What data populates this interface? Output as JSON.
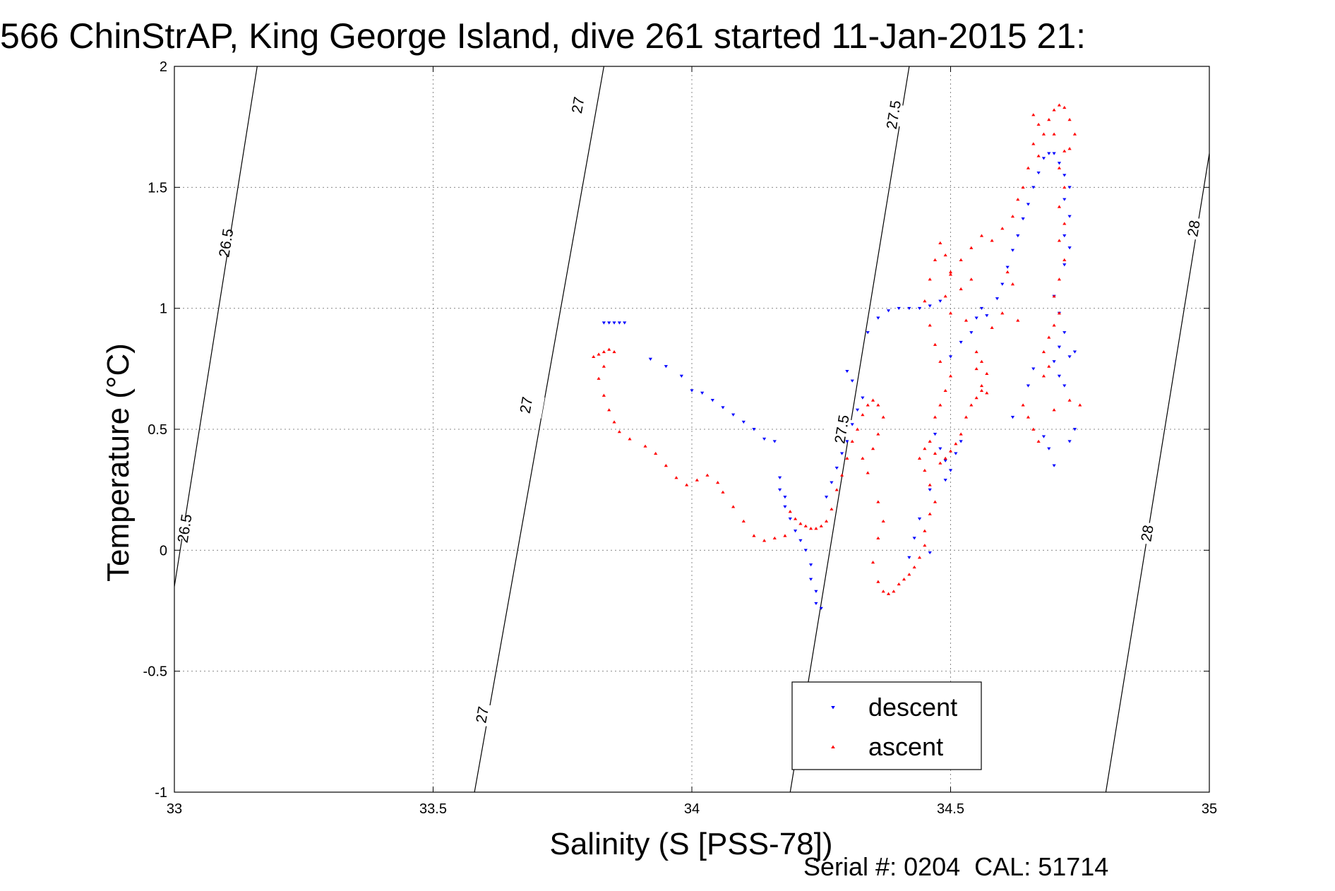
{
  "page": {
    "title": "566 ChinStrAP, King George Island, dive 261 started 11-Jan-2015 21:",
    "footer": "Serial #: 0204  CAL: 51714"
  },
  "chart_data": {
    "type": "scatter",
    "title": "566 ChinStrAP, King George Island, dive 261 started 11-Jan-2015 21:",
    "xlabel": "Salinity (S [PSS-78])",
    "ylabel": "Temperature (°C)",
    "xlim": [
      33,
      35
    ],
    "ylim": [
      -1,
      2
    ],
    "xticks": [
      33,
      33.5,
      34,
      34.5,
      35
    ],
    "xtick_labels": [
      "33",
      "33.5",
      "34",
      "34.5",
      "35"
    ],
    "yticks": [
      -1,
      -0.5,
      0,
      0.5,
      1,
      1.5,
      2
    ],
    "ytick_labels": [
      "-1",
      "-0.5",
      "0",
      "0.5",
      "1",
      "1.5",
      "2"
    ],
    "grid": true,
    "legend": {
      "placement": "bottom-center",
      "entries": [
        "descent",
        "ascent"
      ]
    },
    "colors": {
      "descent": "#0000ff",
      "ascent": "#ff0000"
    },
    "isopycnals": [
      {
        "level": "26.5",
        "path": [
          [
            33.0,
            -0.15
          ],
          [
            33.16,
            2.0
          ]
        ],
        "labels": [
          {
            "x": 33.02,
            "y": 0.09
          },
          {
            "x": 33.1,
            "y": 1.27
          }
        ]
      },
      {
        "level": "27",
        "path": [
          [
            33.58,
            -1.0
          ],
          [
            33.83,
            2.0
          ]
        ],
        "labels": [
          {
            "x": 33.595,
            "y": -0.68
          },
          {
            "x": 33.68,
            "y": 0.6
          },
          {
            "x": 33.78,
            "y": 1.84
          }
        ]
      },
      {
        "level": "27.5",
        "path": [
          [
            34.19,
            -1.0
          ],
          [
            34.42,
            2.0
          ]
        ],
        "labels": [
          {
            "x": 34.29,
            "y": 0.5
          },
          {
            "x": 34.39,
            "y": 1.8
          }
        ]
      },
      {
        "level": "28",
        "path": [
          [
            34.8,
            -1.0
          ],
          [
            35.0,
            1.64
          ]
        ],
        "labels": [
          {
            "x": 34.88,
            "y": 0.07
          },
          {
            "x": 34.97,
            "y": 1.33
          }
        ]
      }
    ],
    "series": [
      {
        "name": "descent",
        "marker": "triangle-down",
        "points": [
          [
            33.83,
            0.94
          ],
          [
            33.84,
            0.94
          ],
          [
            33.85,
            0.94
          ],
          [
            33.86,
            0.94
          ],
          [
            33.87,
            0.94
          ],
          [
            33.92,
            0.79
          ],
          [
            33.95,
            0.76
          ],
          [
            33.98,
            0.72
          ],
          [
            34.0,
            0.66
          ],
          [
            34.02,
            0.65
          ],
          [
            34.04,
            0.62
          ],
          [
            34.06,
            0.59
          ],
          [
            34.08,
            0.56
          ],
          [
            34.1,
            0.53
          ],
          [
            34.12,
            0.5
          ],
          [
            34.14,
            0.46
          ],
          [
            34.16,
            0.45
          ],
          [
            34.17,
            0.3
          ],
          [
            34.17,
            0.25
          ],
          [
            34.18,
            0.22
          ],
          [
            34.18,
            0.18
          ],
          [
            34.19,
            0.13
          ],
          [
            34.2,
            0.08
          ],
          [
            34.21,
            0.04
          ],
          [
            34.22,
            0.0
          ],
          [
            34.23,
            -0.06
          ],
          [
            34.23,
            -0.12
          ],
          [
            34.24,
            -0.17
          ],
          [
            34.24,
            -0.22
          ],
          [
            34.25,
            -0.24
          ],
          [
            34.26,
            0.22
          ],
          [
            34.27,
            0.28
          ],
          [
            34.28,
            0.34
          ],
          [
            34.29,
            0.4
          ],
          [
            34.3,
            0.45
          ],
          [
            34.31,
            0.52
          ],
          [
            34.32,
            0.58
          ],
          [
            34.33,
            0.63
          ],
          [
            34.31,
            0.7
          ],
          [
            34.3,
            0.74
          ],
          [
            34.34,
            0.9
          ],
          [
            34.36,
            0.96
          ],
          [
            34.38,
            0.99
          ],
          [
            34.4,
            1.0
          ],
          [
            34.42,
            1.0
          ],
          [
            34.44,
            1.0
          ],
          [
            34.46,
            1.01
          ],
          [
            34.48,
            1.03
          ],
          [
            34.47,
            0.48
          ],
          [
            34.48,
            0.42
          ],
          [
            34.49,
            0.37
          ],
          [
            34.5,
            0.33
          ],
          [
            34.51,
            0.4
          ],
          [
            34.52,
            0.45
          ],
          [
            34.49,
            0.29
          ],
          [
            34.46,
            0.25
          ],
          [
            34.44,
            0.13
          ],
          [
            34.43,
            0.05
          ],
          [
            34.42,
            -0.03
          ],
          [
            34.46,
            -0.01
          ],
          [
            34.5,
            0.8
          ],
          [
            34.52,
            0.86
          ],
          [
            34.54,
            0.9
          ],
          [
            34.55,
            0.96
          ],
          [
            34.56,
            1.0
          ],
          [
            34.57,
            0.97
          ],
          [
            34.59,
            1.04
          ],
          [
            34.6,
            1.1
          ],
          [
            34.61,
            1.17
          ],
          [
            34.62,
            1.24
          ],
          [
            34.63,
            1.3
          ],
          [
            34.64,
            1.37
          ],
          [
            34.65,
            1.43
          ],
          [
            34.66,
            1.5
          ],
          [
            34.67,
            1.56
          ],
          [
            34.68,
            1.62
          ],
          [
            34.69,
            1.64
          ],
          [
            34.7,
            1.64
          ],
          [
            34.71,
            1.6
          ],
          [
            34.72,
            1.55
          ],
          [
            34.73,
            1.5
          ],
          [
            34.72,
            1.45
          ],
          [
            34.73,
            1.38
          ],
          [
            34.72,
            1.3
          ],
          [
            34.73,
            1.25
          ],
          [
            34.72,
            1.18
          ],
          [
            34.7,
            1.05
          ],
          [
            34.71,
            0.98
          ],
          [
            34.72,
            0.9
          ],
          [
            34.71,
            0.84
          ],
          [
            34.7,
            0.78
          ],
          [
            34.71,
            0.72
          ],
          [
            34.72,
            0.68
          ],
          [
            34.73,
            0.8
          ],
          [
            34.74,
            0.82
          ],
          [
            34.68,
            0.47
          ],
          [
            34.69,
            0.42
          ],
          [
            34.7,
            0.35
          ],
          [
            34.73,
            0.45
          ],
          [
            34.74,
            0.5
          ],
          [
            34.66,
            0.75
          ],
          [
            34.65,
            0.68
          ],
          [
            34.62,
            0.55
          ]
        ]
      },
      {
        "name": "ascent",
        "marker": "triangle-up",
        "points": [
          [
            33.81,
            0.8
          ],
          [
            33.82,
            0.81
          ],
          [
            33.83,
            0.82
          ],
          [
            33.84,
            0.83
          ],
          [
            33.85,
            0.82
          ],
          [
            33.83,
            0.76
          ],
          [
            33.82,
            0.71
          ],
          [
            33.83,
            0.64
          ],
          [
            33.84,
            0.58
          ],
          [
            33.85,
            0.53
          ],
          [
            33.86,
            0.49
          ],
          [
            33.88,
            0.46
          ],
          [
            33.91,
            0.43
          ],
          [
            33.93,
            0.4
          ],
          [
            33.95,
            0.35
          ],
          [
            33.97,
            0.3
          ],
          [
            33.99,
            0.27
          ],
          [
            34.01,
            0.29
          ],
          [
            34.03,
            0.31
          ],
          [
            34.05,
            0.28
          ],
          [
            34.06,
            0.24
          ],
          [
            34.08,
            0.18
          ],
          [
            34.1,
            0.12
          ],
          [
            34.12,
            0.06
          ],
          [
            34.14,
            0.04
          ],
          [
            34.16,
            0.05
          ],
          [
            34.18,
            0.06
          ],
          [
            34.19,
            0.16
          ],
          [
            34.2,
            0.13
          ],
          [
            34.21,
            0.11
          ],
          [
            34.22,
            0.1
          ],
          [
            34.23,
            0.09
          ],
          [
            34.24,
            0.09
          ],
          [
            34.25,
            0.1
          ],
          [
            34.26,
            0.12
          ],
          [
            34.27,
            0.17
          ],
          [
            34.28,
            0.25
          ],
          [
            34.29,
            0.31
          ],
          [
            34.3,
            0.38
          ],
          [
            34.31,
            0.45
          ],
          [
            34.32,
            0.5
          ],
          [
            34.33,
            0.56
          ],
          [
            34.34,
            0.6
          ],
          [
            34.35,
            0.62
          ],
          [
            34.36,
            0.6
          ],
          [
            34.37,
            0.55
          ],
          [
            34.36,
            0.48
          ],
          [
            34.35,
            0.42
          ],
          [
            34.33,
            0.38
          ],
          [
            34.34,
            0.32
          ],
          [
            34.36,
            0.2
          ],
          [
            34.37,
            0.12
          ],
          [
            34.36,
            0.05
          ],
          [
            34.35,
            -0.05
          ],
          [
            34.36,
            -0.13
          ],
          [
            34.37,
            -0.17
          ],
          [
            34.38,
            -0.18
          ],
          [
            34.39,
            -0.17
          ],
          [
            34.4,
            -0.14
          ],
          [
            34.41,
            -0.12
          ],
          [
            34.42,
            -0.1
          ],
          [
            34.43,
            -0.07
          ],
          [
            34.44,
            -0.03
          ],
          [
            34.45,
            0.02
          ],
          [
            34.45,
            0.08
          ],
          [
            34.46,
            0.15
          ],
          [
            34.47,
            0.2
          ],
          [
            34.46,
            0.27
          ],
          [
            34.45,
            0.33
          ],
          [
            34.44,
            0.38
          ],
          [
            34.45,
            0.42
          ],
          [
            34.46,
            0.45
          ],
          [
            34.47,
            0.4
          ],
          [
            34.48,
            0.36
          ],
          [
            34.49,
            0.38
          ],
          [
            34.5,
            0.41
          ],
          [
            34.51,
            0.44
          ],
          [
            34.52,
            0.48
          ],
          [
            34.53,
            0.55
          ],
          [
            34.54,
            0.6
          ],
          [
            34.55,
            0.63
          ],
          [
            34.56,
            0.66
          ],
          [
            34.57,
            0.65
          ],
          [
            34.47,
            0.55
          ],
          [
            34.48,
            0.6
          ],
          [
            34.49,
            0.66
          ],
          [
            34.5,
            0.72
          ],
          [
            34.48,
            0.78
          ],
          [
            34.47,
            0.85
          ],
          [
            34.46,
            0.93
          ],
          [
            34.45,
            1.03
          ],
          [
            34.46,
            1.12
          ],
          [
            34.47,
            1.2
          ],
          [
            34.48,
            1.27
          ],
          [
            34.49,
            1.22
          ],
          [
            34.5,
            1.15
          ],
          [
            34.52,
            1.08
          ],
          [
            34.54,
            1.12
          ],
          [
            34.55,
            0.82
          ],
          [
            34.56,
            0.78
          ],
          [
            34.57,
            0.73
          ],
          [
            34.56,
            0.68
          ],
          [
            34.55,
            0.75
          ],
          [
            34.58,
            0.92
          ],
          [
            34.6,
            0.98
          ],
          [
            34.61,
            1.15
          ],
          [
            34.62,
            1.1
          ],
          [
            34.63,
            0.95
          ],
          [
            34.64,
            0.6
          ],
          [
            34.65,
            0.55
          ],
          [
            34.66,
            0.5
          ],
          [
            34.67,
            0.45
          ],
          [
            34.7,
            0.58
          ],
          [
            34.73,
            0.62
          ],
          [
            34.75,
            0.6
          ],
          [
            34.68,
            0.72
          ],
          [
            34.69,
            0.76
          ],
          [
            34.68,
            0.82
          ],
          [
            34.69,
            0.88
          ],
          [
            34.7,
            0.93
          ],
          [
            34.71,
            0.98
          ],
          [
            34.7,
            1.05
          ],
          [
            34.71,
            1.12
          ],
          [
            34.72,
            1.2
          ],
          [
            34.71,
            1.28
          ],
          [
            34.72,
            1.35
          ],
          [
            34.71,
            1.42
          ],
          [
            34.72,
            1.5
          ],
          [
            34.71,
            1.58
          ],
          [
            34.72,
            1.65
          ],
          [
            34.7,
            1.72
          ],
          [
            34.69,
            1.78
          ],
          [
            34.7,
            1.82
          ],
          [
            34.71,
            1.84
          ],
          [
            34.72,
            1.83
          ],
          [
            34.73,
            1.78
          ],
          [
            34.74,
            1.72
          ],
          [
            34.73,
            1.66
          ],
          [
            34.66,
            1.8
          ],
          [
            34.67,
            1.76
          ],
          [
            34.68,
            1.72
          ],
          [
            34.66,
            1.68
          ],
          [
            34.67,
            1.63
          ],
          [
            34.65,
            1.58
          ],
          [
            34.64,
            1.5
          ],
          [
            34.63,
            1.45
          ],
          [
            34.62,
            1.38
          ],
          [
            34.6,
            1.33
          ],
          [
            34.58,
            1.28
          ],
          [
            34.56,
            1.3
          ],
          [
            34.54,
            1.25
          ],
          [
            34.52,
            1.2
          ],
          [
            34.5,
            1.14
          ],
          [
            34.49,
            1.05
          ],
          [
            34.5,
            0.98
          ],
          [
            34.53,
            0.95
          ]
        ]
      }
    ]
  }
}
